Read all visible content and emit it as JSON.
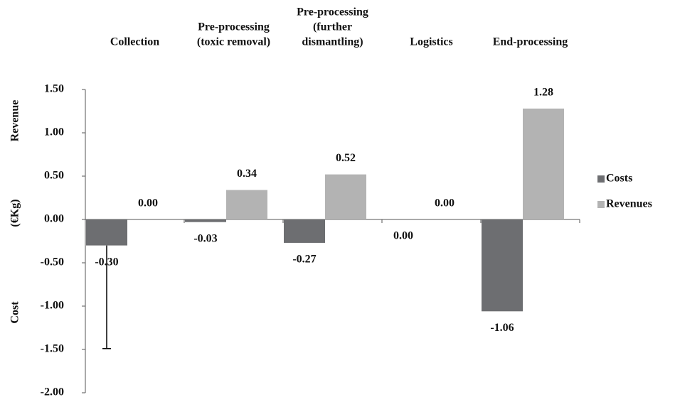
{
  "chart_data": {
    "type": "bar",
    "categories": [
      [
        "Collection"
      ],
      [
        "Pre-processing",
        "(toxic removal)"
      ],
      [
        "Pre-processing",
        "(further",
        "dismantling)"
      ],
      [
        "Logistics"
      ],
      [
        "End-processing"
      ]
    ],
    "ylabel": [
      "Revenue",
      "(€Kg)",
      "Cost"
    ],
    "series": [
      {
        "name": "Costs",
        "color": "#6d6e71",
        "values": [
          -0.3,
          -0.03,
          -0.27,
          0.0,
          -1.06
        ],
        "value_labels": [
          "-0.30",
          "-0.03",
          "-0.27",
          "0.00",
          "-1.06"
        ],
        "errors": [
          1.19,
          null,
          null,
          null,
          null
        ]
      },
      {
        "name": "Revenues",
        "color": "#b3b3b3",
        "values": [
          0.0,
          0.34,
          0.52,
          0.0,
          1.28
        ],
        "value_labels": [
          "0.00",
          "0.34",
          "0.52",
          "0.00",
          "1.28"
        ]
      }
    ],
    "ylim": [
      -2.0,
      1.5
    ],
    "yticks": [
      {
        "value": -2.0,
        "label": "-2.00"
      },
      {
        "value": -1.5,
        "label": "-1.50"
      },
      {
        "value": -1.0,
        "label": "-1.00"
      },
      {
        "value": -0.5,
        "label": "-0.50"
      },
      {
        "value": 0,
        "label": "0.00"
      },
      {
        "value": 0.5,
        "label": "0.50"
      },
      {
        "value": 1.0,
        "label": "1.00"
      },
      {
        "value": 1.5,
        "label": "1.50"
      }
    ],
    "legend": "right"
  }
}
